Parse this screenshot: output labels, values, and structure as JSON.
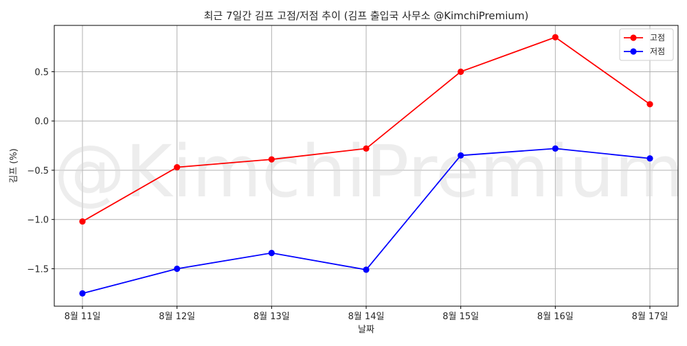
{
  "chart_data": {
    "type": "line",
    "title": "최근 7일간 김프 고점/저점 추이 (김프 출입국 사무소 @KimchiPremium)",
    "xlabel": "날짜",
    "ylabel": "김프 (%)",
    "categories": [
      "8월 11일",
      "8월 12일",
      "8월 13일",
      "8월 14일",
      "8월 15일",
      "8월 16일",
      "8월 17일"
    ],
    "series": [
      {
        "name": "고점",
        "color": "#ff0000",
        "values": [
          -1.02,
          -0.47,
          -0.39,
          -0.28,
          0.5,
          0.85,
          0.17
        ]
      },
      {
        "name": "저점",
        "color": "#0000ff",
        "values": [
          -1.75,
          -1.5,
          -1.34,
          -1.51,
          -0.35,
          -0.28,
          -0.38
        ]
      }
    ],
    "ylim": [
      -1.88,
      0.97
    ],
    "yticks": [
      0.5,
      0.0,
      -0.5,
      -1.0,
      -1.5
    ],
    "ytick_labels": [
      "0.5",
      "0.0",
      "−0.5",
      "−1.0",
      "−1.5"
    ],
    "grid": true,
    "legend_position": "top-right",
    "watermark": "@KimchiPremium"
  }
}
